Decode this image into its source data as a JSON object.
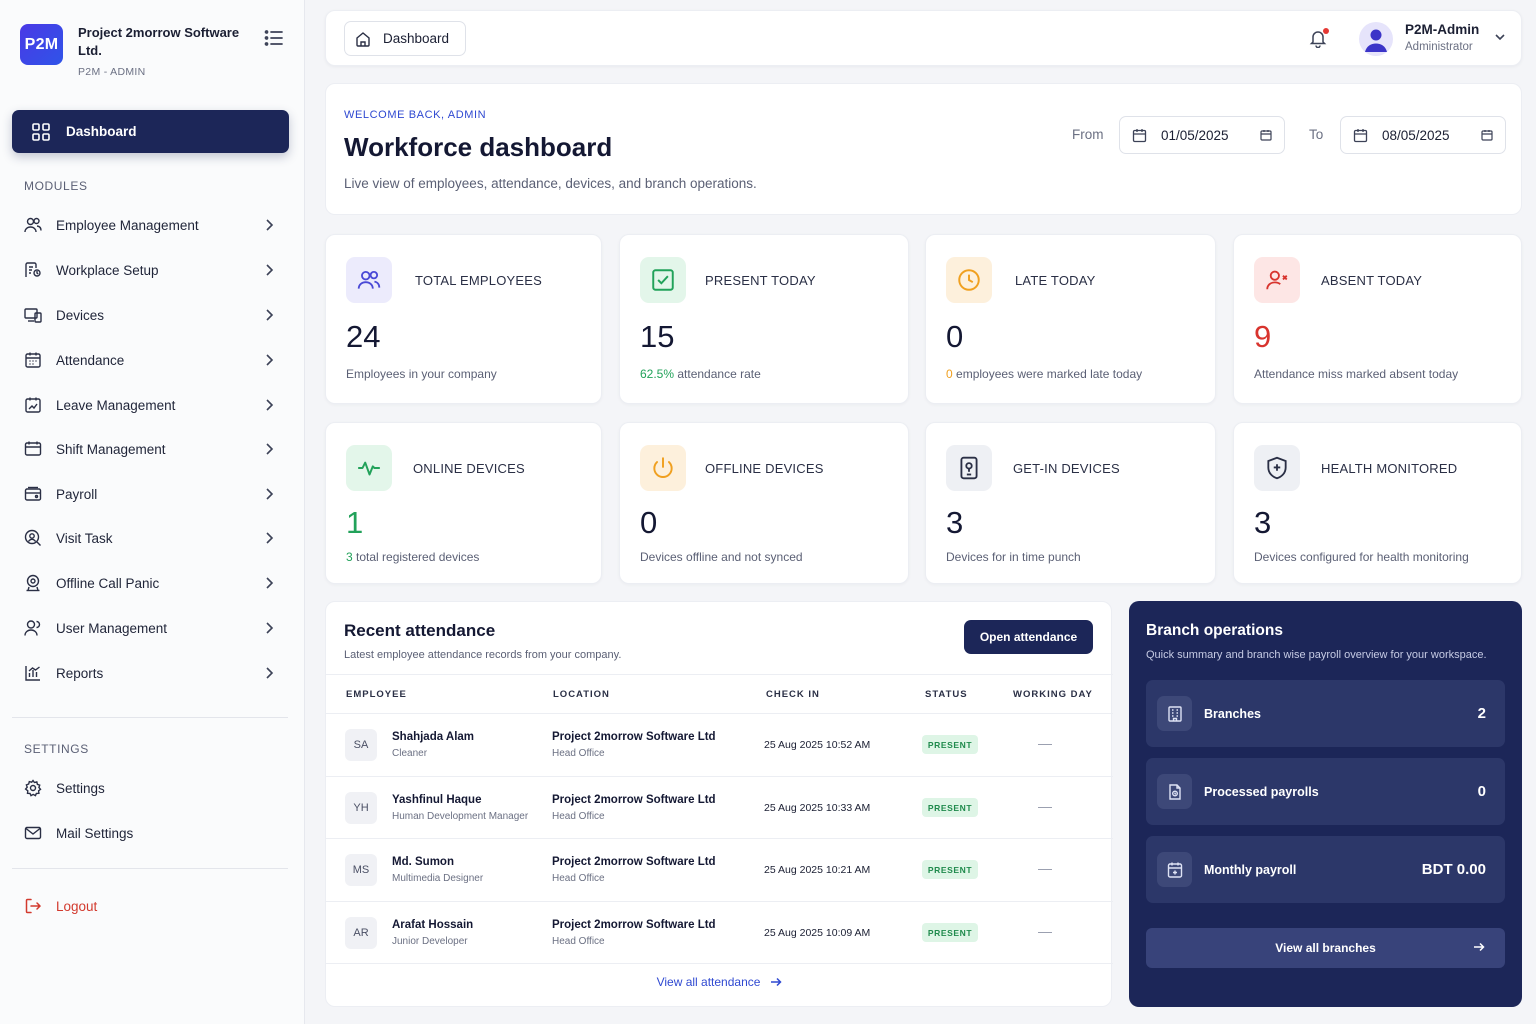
{
  "brand": {
    "logo_text": "P2M",
    "name": "Project 2morrow Software Ltd.",
    "role": "P2M - ADMIN"
  },
  "sidebar": {
    "active": {
      "label": "Dashboard",
      "icon": "grid-icon"
    },
    "modules_label": "MODULES",
    "items": [
      {
        "label": "Employee Management",
        "icon": "users-icon"
      },
      {
        "label": "Workplace Setup",
        "icon": "workplace-icon"
      },
      {
        "label": "Devices",
        "icon": "devices-icon"
      },
      {
        "label": "Attendance",
        "icon": "calendar-grid-icon"
      },
      {
        "label": "Leave Management",
        "icon": "leave-icon"
      },
      {
        "label": "Shift Management",
        "icon": "shift-icon"
      },
      {
        "label": "Payroll",
        "icon": "wallet-icon"
      },
      {
        "label": "Visit Task",
        "icon": "visit-icon"
      },
      {
        "label": "Offline Call Panic",
        "icon": "headset-icon"
      },
      {
        "label": "User Management",
        "icon": "user-icon"
      },
      {
        "label": "Reports",
        "icon": "chart-icon"
      }
    ],
    "settings_label": "SETTINGS",
    "settings_items": [
      {
        "label": "Settings",
        "icon": "gear-icon"
      },
      {
        "label": "Mail Settings",
        "icon": "mail-icon"
      }
    ],
    "logout_label": "Logout"
  },
  "topbar": {
    "breadcrumb": "Dashboard",
    "user_name": "P2M-Admin",
    "user_role": "Administrator"
  },
  "welcome": {
    "eyebrow": "WELCOME BACK, ADMIN",
    "title": "Workforce dashboard",
    "subtitle": "Live view of employees, attendance, devices, and branch operations.",
    "from_label": "From",
    "from_date": "01/05/2025",
    "to_label": "To",
    "to_date": "08/05/2025"
  },
  "stats": [
    {
      "label": "TOTAL EMPLOYEES",
      "value": "24",
      "desc_highlight": "",
      "desc": "Employees in your company",
      "icon": "users-icon",
      "color": "#4a49d6",
      "bg": "#ecebfc"
    },
    {
      "label": "PRESENT TODAY",
      "value": "15",
      "desc_highlight": "62.5%",
      "desc": " attendance rate",
      "icon": "check-square-icon",
      "color": "#22a25a",
      "bg": "#e3f6ea"
    },
    {
      "label": "LATE TODAY",
      "value": "0",
      "desc_highlight": "0",
      "desc": " employees were marked late today",
      "icon": "clock-icon",
      "color": "#f0a020",
      "bg": "#fdf0dc"
    },
    {
      "label": "ABSENT TODAY",
      "value": "9",
      "desc_highlight": "",
      "desc": "Attendance miss marked absent today",
      "icon": "user-x-icon",
      "color": "#d8342e",
      "bg": "#fde6e5"
    },
    {
      "label": "ONLINE DEVICES",
      "value": "1",
      "desc_highlight": "3",
      "desc": " total registered devices",
      "icon": "activity-icon",
      "color": "#22a25a",
      "bg": "#e3f6ea"
    },
    {
      "label": "OFFLINE DEVICES",
      "value": "0",
      "desc_highlight": "",
      "desc": "Devices offline and not synced",
      "icon": "power-icon",
      "color": "#f0a020",
      "bg": "#fdf0dc"
    },
    {
      "label": "GET-IN DEVICES",
      "value": "3",
      "desc_highlight": "",
      "desc": "Devices for in time punch",
      "icon": "device-pin-icon",
      "color": "#2a2f45",
      "bg": "#eef0f4"
    },
    {
      "label": "HEALTH MONITORED",
      "value": "3",
      "desc_highlight": "",
      "desc": "Devices configured for health monitoring",
      "icon": "shield-plus-icon",
      "color": "#2a2f45",
      "bg": "#eef0f4"
    }
  ],
  "attendance": {
    "title": "Recent attendance",
    "subtitle": "Latest employee attendance records from your company.",
    "open_button": "Open attendance",
    "columns": [
      "EMPLOYEE",
      "LOCATION",
      "CHECK IN",
      "STATUS",
      "WORKING DAY"
    ],
    "rows": [
      {
        "initials": "SA",
        "name": "Shahjada Alam",
        "role": "Cleaner",
        "location": "Project 2morrow Software Ltd",
        "branch": "Head Office",
        "check_in": "25 Aug 2025 10:52 AM",
        "status": "PRESENT"
      },
      {
        "initials": "YH",
        "name": "Yashfinul Haque",
        "role": "Human Development Manager",
        "location": "Project 2morrow Software Ltd",
        "branch": "Head Office",
        "check_in": "25 Aug 2025 10:33 AM",
        "status": "PRESENT"
      },
      {
        "initials": "MS",
        "name": "Md. Sumon",
        "role": "Multimedia Designer",
        "location": "Project 2morrow Software Ltd",
        "branch": "Head Office",
        "check_in": "25 Aug 2025 10:21 AM",
        "status": "PRESENT"
      },
      {
        "initials": "AR",
        "name": "Arafat Hossain",
        "role": "Junior Developer",
        "location": "Project 2morrow Software Ltd",
        "branch": "Head Office",
        "check_in": "25 Aug 2025 10:09 AM",
        "status": "PRESENT"
      }
    ],
    "view_all": "View all attendance"
  },
  "branch_ops": {
    "title": "Branch operations",
    "subtitle": "Quick summary and branch wise payroll overview for your workspace.",
    "items": [
      {
        "label": "Branches",
        "value": "2",
        "icon": "building-icon"
      },
      {
        "label": "Processed payrolls",
        "value": "0",
        "icon": "document-icon"
      },
      {
        "label": "Monthly payroll",
        "value": "BDT 0.00",
        "icon": "calendar-icon"
      }
    ],
    "button": "View all branches"
  },
  "colors": {
    "primary": "#1c2658",
    "accent": "#2f49d1",
    "success": "#22a25a",
    "warning": "#f0a020",
    "danger": "#d8342e"
  }
}
